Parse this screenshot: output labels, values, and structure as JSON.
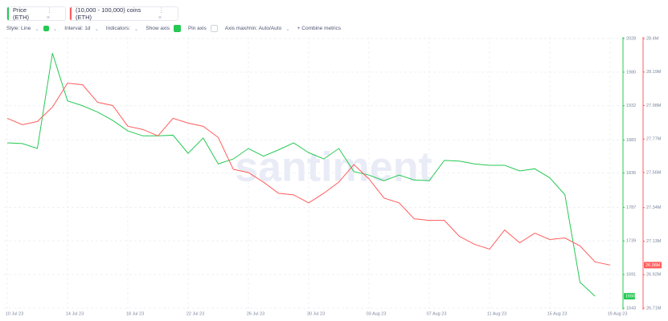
{
  "toolbar": {
    "style": "Style: Line",
    "interval": "Interval: 1d",
    "indicators": "Indicators:",
    "show_axis": "Show axis",
    "pin_axis": "Pin axis",
    "axis_minmax": "Axis max/min: Auto/Auto",
    "combine": "Combine metrics"
  },
  "watermark": "santiment",
  "chart_data": {
    "type": "line",
    "categories": [
      "10 Jul 23",
      null,
      null,
      null,
      "14 Jul 23",
      null,
      null,
      null,
      "18 Jul 23",
      null,
      null,
      null,
      "22 Jul 23",
      null,
      null,
      null,
      "26 Jul 23",
      null,
      null,
      null,
      "30 Jul 23",
      null,
      null,
      null,
      "03 Aug 23",
      null,
      null,
      null,
      "07 Aug 23",
      null,
      null,
      null,
      "11 Aug 23",
      null,
      null,
      null,
      "15 Aug 23",
      null,
      null,
      null,
      "19 Aug 23"
    ],
    "series": [
      {
        "name": "Price (ETH)",
        "color": "#26c953",
        "axis": "y",
        "values": [
          1879,
          1878,
          1871,
          2007,
          1939,
          1932,
          1923,
          1911,
          1896,
          1889,
          1889,
          1890,
          1864,
          1886,
          1849,
          1856,
          1871,
          1860,
          1869,
          1879,
          1865,
          1856,
          1871,
          1838,
          1833,
          1825,
          1833,
          1826,
          1825,
          1854,
          1853,
          1849,
          1847,
          1847,
          1839,
          1842,
          1829,
          1805,
          1680,
          1660,
          null
        ]
      },
      {
        "name": "(10,000 - 100,000) coins (ETH)",
        "color": "#ff5b5b",
        "axis": "y2",
        "values": [
          27.9,
          27.86,
          27.88,
          27.97,
          28.12,
          28.11,
          28.0,
          27.98,
          27.85,
          27.83,
          27.79,
          27.9,
          27.87,
          27.85,
          27.78,
          27.58,
          27.56,
          27.5,
          27.43,
          27.42,
          27.37,
          27.43,
          27.5,
          27.61,
          27.52,
          27.4,
          27.37,
          27.27,
          27.26,
          27.26,
          27.16,
          27.11,
          27.08,
          27.2,
          27.12,
          27.18,
          27.14,
          27.15,
          27.1,
          27.0,
          26.98
        ],
        "value_labels": [
          null,
          null,
          null,
          null,
          null,
          null,
          null,
          null,
          null,
          null,
          null,
          null,
          null,
          null,
          null,
          null,
          null,
          null,
          null,
          null,
          null,
          null,
          null,
          null,
          null,
          null,
          null,
          null,
          null,
          null,
          null,
          null,
          null,
          null,
          null,
          null,
          null,
          null,
          null,
          null,
          "26.98M"
        ]
      }
    ],
    "ylim": [
      1643,
      2028
    ],
    "yticks": [
      2028,
      1980,
      1932,
      1883,
      1836,
      1787,
      1739,
      1691,
      1643
    ],
    "y2lim": [
      26.71,
      28.4
    ],
    "y2ticks": [
      {
        "value": 28.4,
        "label": "28.4M"
      },
      {
        "value": 28.19,
        "label": "28.19M"
      },
      {
        "value": 27.98,
        "label": "27.98M"
      },
      {
        "value": 27.77,
        "label": "27.77M"
      },
      {
        "value": 27.56,
        "label": "27.56M"
      },
      {
        "value": 27.34,
        "label": "27.34M"
      },
      {
        "value": 27.13,
        "label": "27.13M"
      },
      {
        "value": 26.92,
        "label": "26.92M"
      },
      {
        "value": 26.71,
        "label": "26.71M"
      }
    ],
    "grid": true
  }
}
